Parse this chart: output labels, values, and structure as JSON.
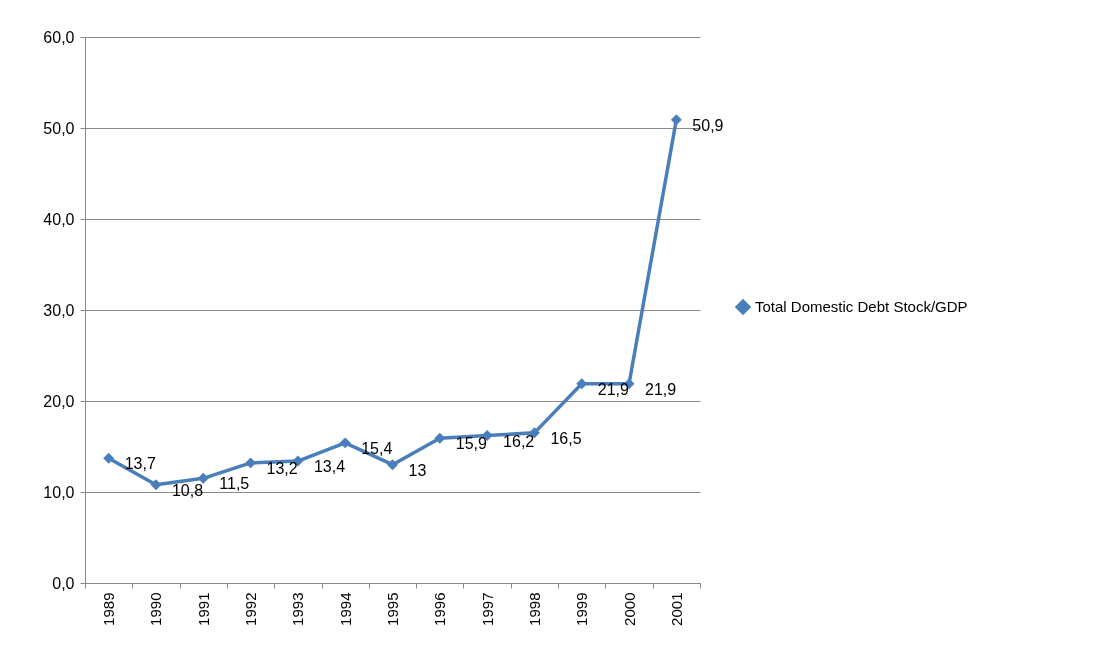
{
  "chart_data": {
    "type": "line",
    "categories": [
      "1989",
      "1990",
      "1991",
      "1992",
      "1993",
      "1994",
      "1995",
      "1996",
      "1997",
      "1998",
      "1999",
      "2000",
      "2001"
    ],
    "series": [
      {
        "name": "Total Domestic Debt Stock/GDP",
        "color": "#4a7ebb",
        "values": [
          13.7,
          10.8,
          11.5,
          13.2,
          13.4,
          15.4,
          13,
          15.9,
          16.2,
          16.5,
          21.9,
          21.9,
          50.9
        ],
        "value_labels": [
          "13,7",
          "10,8",
          "11,5",
          "13,2",
          "13,4",
          "15,4",
          "13",
          "15,9",
          "16,2",
          "16,5",
          "21,9",
          "21,9",
          "50,9"
        ]
      }
    ],
    "ylim": [
      0,
      60
    ],
    "yticks": [
      {
        "value": 0,
        "label": "0,0"
      },
      {
        "value": 10,
        "label": "10,0"
      },
      {
        "value": 20,
        "label": "20,0"
      },
      {
        "value": 30,
        "label": "30,0"
      },
      {
        "value": 40,
        "label": "40,0"
      },
      {
        "value": 50,
        "label": "50,0"
      },
      {
        "value": 60,
        "label": "60,0"
      }
    ],
    "grid": "y",
    "legend": "right",
    "marker": "diamond",
    "line_style": "solid"
  }
}
